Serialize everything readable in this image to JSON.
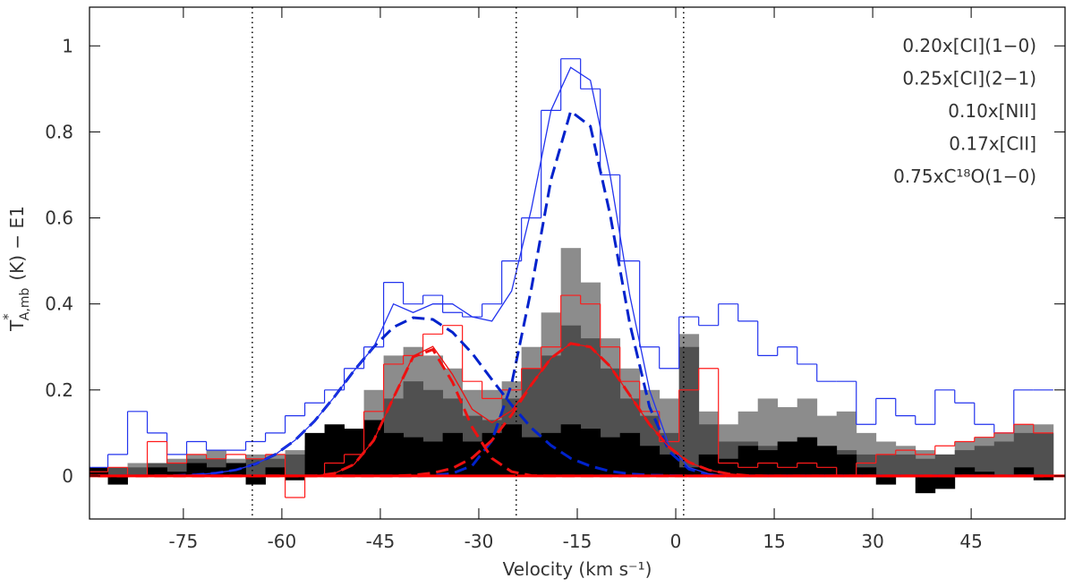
{
  "chart_data": {
    "type": "spectrum",
    "x_label": "Velocity (km s⁻¹)",
    "y_label": [
      "T",
      "*",
      "A,mb",
      "(K) − E1"
    ],
    "xlim": [
      -89.3,
      59.3
    ],
    "ylim": [
      -0.1,
      1.09
    ],
    "xticks": [
      -75,
      -60,
      -45,
      -30,
      -15,
      0,
      15,
      30,
      45
    ],
    "yticks": [
      0,
      0.2,
      0.4,
      0.6,
      0.8,
      1
    ],
    "vlines": [
      -64.5,
      -24.3,
      1.2
    ],
    "x": [
      -88,
      -85,
      -82,
      -79,
      -76,
      -73,
      -70,
      -67,
      -64,
      -61,
      -58,
      -55,
      -52,
      -49,
      -46,
      -43,
      -40,
      -37,
      -34,
      -31,
      -28,
      -25,
      -22,
      -19,
      -16,
      -13,
      -10,
      -7,
      -4,
      -1,
      2,
      5,
      8,
      11,
      14,
      17,
      20,
      23,
      26,
      29,
      32,
      35,
      38,
      41,
      44,
      47,
      50,
      53,
      56
    ],
    "series": [
      {
        "name": "0.20x[CI](1−0)",
        "style": "filled",
        "color": "#8c8c8c",
        "label_color": "#a8a8a8",
        "values": [
          0.02,
          0.02,
          0.03,
          0.03,
          0.04,
          0.05,
          0.06,
          0.04,
          0.05,
          0.05,
          0.06,
          0.07,
          0.05,
          0.1,
          0.2,
          0.28,
          0.3,
          0.28,
          0.25,
          0.2,
          0.2,
          0.22,
          0.3,
          0.38,
          0.53,
          0.45,
          0.32,
          0.25,
          0.2,
          0.18,
          0.33,
          0.15,
          0.12,
          0.15,
          0.18,
          0.16,
          0.18,
          0.14,
          0.15,
          0.1,
          0.08,
          0.07,
          0.06,
          0.05,
          0.08,
          0.09,
          0.1,
          0.12,
          0.12
        ]
      },
      {
        "name": "0.25x[CI](2−1)",
        "style": "filled",
        "color": "#505050",
        "label_color": "#606060",
        "values": [
          0.01,
          0.02,
          0.02,
          0.03,
          0.03,
          0.04,
          0.04,
          0.03,
          0.04,
          0.04,
          0.05,
          0.05,
          0.04,
          0.06,
          0.12,
          0.18,
          0.22,
          0.2,
          0.18,
          0.14,
          0.13,
          0.18,
          0.25,
          0.28,
          0.35,
          0.32,
          0.25,
          0.18,
          0.14,
          0.1,
          0.3,
          0.12,
          0.08,
          0.08,
          0.07,
          0.06,
          0.07,
          0.06,
          0.06,
          0.05,
          0.05,
          0.05,
          0.04,
          0.05,
          0.06,
          0.07,
          0.08,
          0.1,
          0.1
        ]
      },
      {
        "name": "0.10x[NII]",
        "style": "filled",
        "color": "#000000",
        "label_color": "#000000",
        "values": [
          0.02,
          -0.02,
          0.0,
          0.02,
          0.01,
          0.03,
          0.02,
          0.03,
          -0.02,
          0.02,
          -0.01,
          0.1,
          0.12,
          0.11,
          0.13,
          0.1,
          0.09,
          0.08,
          0.1,
          0.08,
          0.1,
          0.12,
          0.09,
          0.1,
          0.12,
          0.11,
          0.09,
          0.1,
          0.07,
          0.05,
          0.02,
          0.05,
          0.04,
          0.07,
          0.06,
          0.08,
          0.09,
          0.07,
          0.05,
          0.02,
          -0.02,
          0.0,
          -0.04,
          -0.03,
          0.02,
          0.01,
          0.0,
          0.02,
          -0.01
        ]
      },
      {
        "name": "0.17x[CII]",
        "style": "step",
        "color": "#2233ee",
        "label_color": "#2233ee",
        "values": [
          0.02,
          0.05,
          0.15,
          0.1,
          0.05,
          0.08,
          0.06,
          0.06,
          0.08,
          0.1,
          0.14,
          0.17,
          0.2,
          0.25,
          0.3,
          0.45,
          0.4,
          0.42,
          0.38,
          0.37,
          0.4,
          0.5,
          0.6,
          0.85,
          0.97,
          0.9,
          0.7,
          0.5,
          0.3,
          0.25,
          0.37,
          0.35,
          0.4,
          0.36,
          0.28,
          0.3,
          0.26,
          0.22,
          0.22,
          0.12,
          0.18,
          0.14,
          0.12,
          0.2,
          0.17,
          0.12,
          0.1,
          0.2,
          0.2
        ]
      },
      {
        "name": "0.75xC¹⁸O(1−0)",
        "style": "step",
        "color": "#ff1a1a",
        "label_color": "#ff1a1a",
        "values": [
          0.01,
          0.02,
          0.0,
          0.08,
          0.03,
          0.05,
          0.04,
          0.05,
          0.04,
          0.05,
          -0.05,
          0.0,
          0.03,
          0.05,
          0.15,
          0.26,
          0.28,
          0.33,
          0.35,
          0.22,
          0.18,
          0.2,
          0.25,
          0.3,
          0.42,
          0.4,
          0.3,
          0.22,
          0.15,
          0.08,
          0.2,
          0.25,
          0.03,
          0.02,
          0.03,
          0.02,
          0.03,
          0.02,
          0.0,
          0.03,
          0.05,
          0.06,
          0.05,
          0.07,
          0.08,
          0.09,
          0.1,
          0.12,
          0.1
        ]
      },
      {
        "style": "dashed",
        "color": "#0022cc",
        "values": [
          0,
          0,
          0,
          0,
          0.001,
          0.003,
          0.007,
          0.014,
          0.028,
          0.05,
          0.083,
          0.128,
          0.184,
          0.245,
          0.3,
          0.346,
          0.368,
          0.364,
          0.334,
          0.285,
          0.224,
          0.165,
          0.112,
          0.071,
          0.041,
          0.023,
          0.011,
          0.005,
          0.002,
          0.001,
          0,
          0,
          0,
          0,
          0,
          0,
          0,
          0,
          0,
          0,
          0,
          0,
          0,
          0,
          0,
          0,
          0,
          0,
          0
        ]
      },
      {
        "style": "dashed",
        "color": "#0022cc",
        "values": [
          0,
          0,
          0,
          0,
          0,
          0,
          0,
          0,
          0,
          0,
          0,
          0,
          0,
          0,
          0,
          0,
          0,
          0.001,
          0.006,
          0.024,
          0.082,
          0.214,
          0.435,
          0.689,
          0.848,
          0.813,
          0.608,
          0.354,
          0.161,
          0.057,
          0.016,
          0.003,
          0,
          0,
          0,
          0,
          0,
          0,
          0,
          0,
          0,
          0,
          0,
          0,
          0,
          0,
          0,
          0,
          0
        ]
      },
      {
        "style": "solid",
        "color": "#2233ee",
        "values": [
          0,
          0,
          0,
          0,
          0.001,
          0.003,
          0.007,
          0.014,
          0.028,
          0.05,
          0.083,
          0.128,
          0.184,
          0.245,
          0.3,
          0.4,
          0.38,
          0.4,
          0.4,
          0.37,
          0.36,
          0.43,
          0.62,
          0.85,
          0.95,
          0.92,
          0.7,
          0.42,
          0.2,
          0.07,
          0.02,
          0.005,
          0,
          0,
          0,
          0,
          0,
          0,
          0,
          0,
          0,
          0,
          0,
          0,
          0,
          0,
          0,
          0,
          0
        ]
      },
      {
        "style": "dashed",
        "color": "#ee1111",
        "values": [
          0,
          0,
          0,
          0,
          0,
          0,
          0,
          0,
          0,
          0,
          0,
          0,
          0.006,
          0.027,
          0.083,
          0.182,
          0.277,
          0.294,
          0.218,
          0.113,
          0.041,
          0.01,
          0.001,
          0,
          0,
          0,
          0,
          0,
          0,
          0,
          0,
          0,
          0,
          0,
          0,
          0,
          0,
          0,
          0,
          0,
          0,
          0,
          0,
          0,
          0,
          0,
          0,
          0,
          0
        ]
      },
      {
        "style": "dashed",
        "color": "#ee1111",
        "values": [
          0,
          0,
          0,
          0,
          0,
          0,
          0,
          0,
          0,
          0,
          0,
          0,
          0,
          0,
          0,
          0,
          0.002,
          0.007,
          0.018,
          0.042,
          0.083,
          0.142,
          0.212,
          0.274,
          0.308,
          0.3,
          0.255,
          0.188,
          0.12,
          0.067,
          0.032,
          0.014,
          0.005,
          0.001,
          0,
          0,
          0,
          0,
          0,
          0,
          0,
          0,
          0,
          0,
          0,
          0,
          0,
          0,
          0
        ]
      },
      {
        "style": "solid",
        "color": "#ee1111",
        "values": [
          0,
          0,
          0,
          0,
          0,
          0,
          0,
          0,
          0,
          0,
          0,
          0,
          0.006,
          0.027,
          0.083,
          0.182,
          0.279,
          0.301,
          0.236,
          0.155,
          0.124,
          0.152,
          0.213,
          0.274,
          0.308,
          0.3,
          0.255,
          0.188,
          0.12,
          0.067,
          0.032,
          0.014,
          0.005,
          0.001,
          0,
          0,
          0,
          0,
          0,
          0,
          0,
          0,
          0,
          0,
          0,
          0,
          0,
          0,
          0
        ]
      }
    ]
  }
}
